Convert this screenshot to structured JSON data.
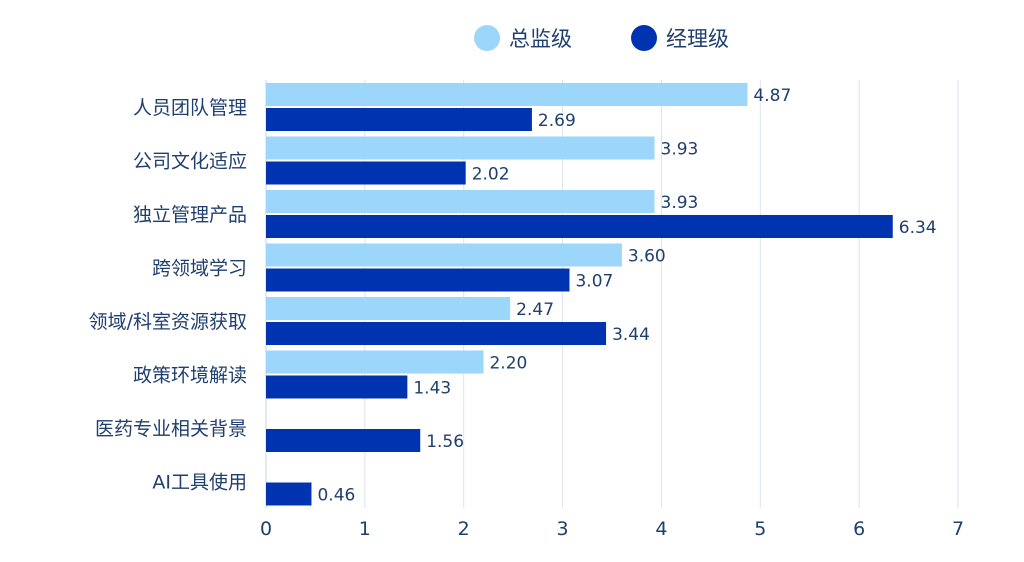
{
  "chart_data": {
    "type": "bar",
    "orientation": "horizontal",
    "title": "",
    "xlabel": "",
    "ylabel": "",
    "xlim": [
      0,
      7
    ],
    "xticks": [
      "0",
      "1",
      "2",
      "3",
      "4",
      "5",
      "6",
      "7"
    ],
    "grid": true,
    "legend_position": "top",
    "categories": [
      "人员团队管理",
      "公司文化适应",
      "独立管理产品",
      "跨领域学习",
      "领域/科室资源获取",
      "政策环境解读",
      "医药专业相关背景",
      "AI工具使用"
    ],
    "series": [
      {
        "name": "总监级",
        "color": "#9dd6fb",
        "values": [
          4.87,
          3.93,
          3.93,
          3.6,
          2.47,
          2.2,
          null,
          null
        ],
        "labels": [
          "4.87",
          "3.93",
          "3.93",
          "3.60",
          "2.47",
          "2.20",
          null,
          null
        ]
      },
      {
        "name": "经理级",
        "color": "#0033b0",
        "values": [
          2.69,
          2.02,
          6.34,
          3.07,
          3.44,
          1.43,
          1.56,
          0.46
        ],
        "labels": [
          "2.69",
          "2.02",
          "6.34",
          "3.07",
          "3.44",
          "1.43",
          "1.56",
          "0.46"
        ]
      }
    ]
  }
}
